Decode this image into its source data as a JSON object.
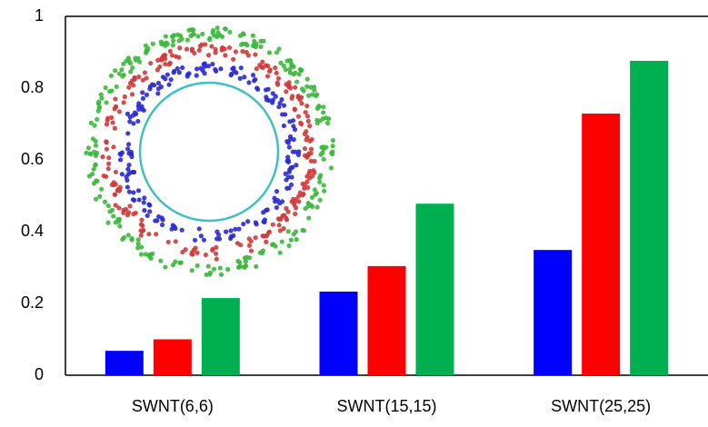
{
  "chart_data": {
    "type": "bar",
    "categories": [
      "SWNT(6,6)",
      "SWNT(15,15)",
      "SWNT(25,25)"
    ],
    "series": [
      {
        "color": "#0000ff",
        "values": [
          0.068,
          0.233,
          0.349
        ]
      },
      {
        "color": "#ff0000",
        "values": [
          0.1,
          0.304,
          0.729
        ]
      },
      {
        "color": "#00b050",
        "values": [
          0.215,
          0.478,
          0.876
        ]
      }
    ],
    "ylim": [
      0,
      1
    ],
    "yticks": [
      0,
      0.2,
      0.4,
      0.6,
      0.8,
      1
    ],
    "grid": false
  }
}
